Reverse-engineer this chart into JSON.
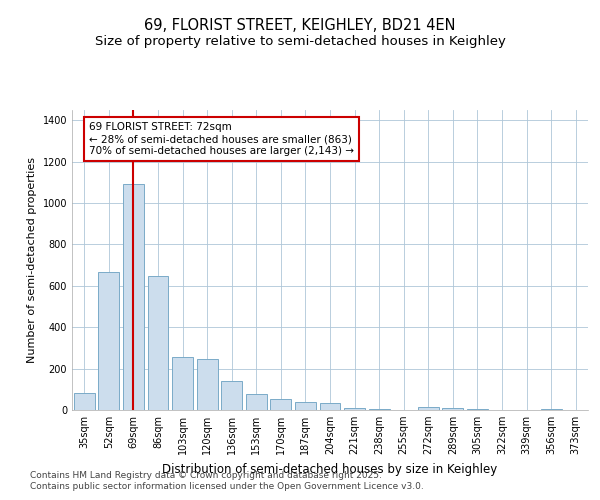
{
  "title1": "69, FLORIST STREET, KEIGHLEY, BD21 4EN",
  "title2": "Size of property relative to semi-detached houses in Keighley",
  "xlabel": "Distribution of semi-detached houses by size in Keighley",
  "ylabel": "Number of semi-detached properties",
  "categories": [
    "35sqm",
    "52sqm",
    "69sqm",
    "86sqm",
    "103sqm",
    "120sqm",
    "136sqm",
    "153sqm",
    "170sqm",
    "187sqm",
    "204sqm",
    "221sqm",
    "238sqm",
    "255sqm",
    "272sqm",
    "289sqm",
    "305sqm",
    "322sqm",
    "339sqm",
    "356sqm",
    "373sqm"
  ],
  "values": [
    80,
    665,
    1090,
    650,
    255,
    245,
    140,
    75,
    55,
    40,
    35,
    10,
    5,
    0,
    15,
    10,
    5,
    0,
    0,
    5,
    0
  ],
  "bar_color": "#ccdded",
  "bar_edge_color": "#7aaac8",
  "vline_x_index": 2,
  "vline_color": "#cc0000",
  "annotation_text": "69 FLORIST STREET: 72sqm\n← 28% of semi-detached houses are smaller (863)\n70% of semi-detached houses are larger (2,143) →",
  "annotation_box_color": "#ffffff",
  "annotation_box_edge": "#cc0000",
  "footnote1": "Contains HM Land Registry data © Crown copyright and database right 2025.",
  "footnote2": "Contains public sector information licensed under the Open Government Licence v3.0.",
  "background_color": "#ffffff",
  "grid_color": "#aec6d8",
  "ylim": [
    0,
    1450
  ],
  "title1_fontsize": 10.5,
  "title2_fontsize": 9.5,
  "tick_fontsize": 7,
  "ylabel_fontsize": 8,
  "xlabel_fontsize": 8.5,
  "footnote_fontsize": 6.5,
  "annotation_fontsize": 7.5
}
